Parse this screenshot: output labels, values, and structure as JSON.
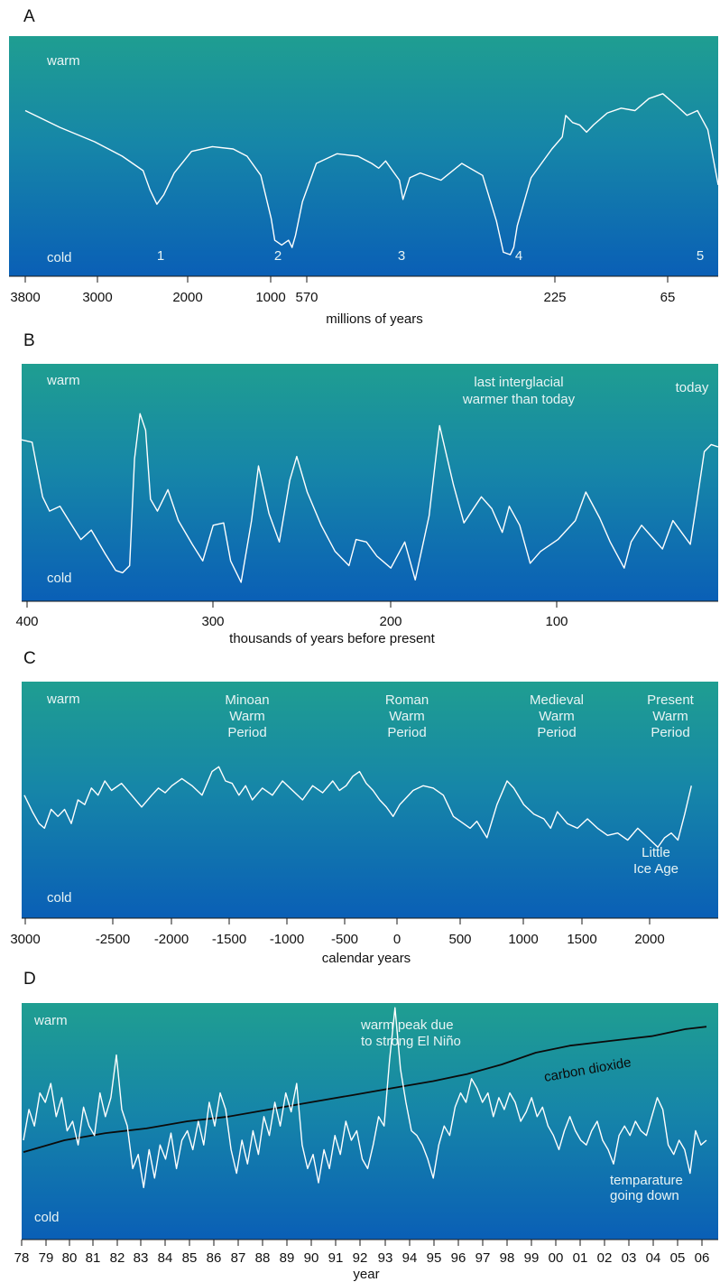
{
  "chart_data": [
    {
      "type": "line",
      "panel_label": "A",
      "xlabel": "millions of years",
      "ylabel_top": "warm",
      "ylabel_bottom": "cold",
      "x_ticks": [
        "3800",
        "3000",
        "2000",
        "1000",
        "570",
        "225",
        "65"
      ],
      "markers": [
        "1",
        "2",
        "3",
        "4",
        "5"
      ],
      "annotations": [],
      "series": [
        {
          "color": "#ffffff",
          "x": [
            0,
            0.05,
            0.1,
            0.14,
            0.17,
            0.18,
            0.19,
            0.2,
            0.215,
            0.24,
            0.27,
            0.3,
            0.32,
            0.34,
            0.355,
            0.36,
            0.37,
            0.38,
            0.385,
            0.39,
            0.4,
            0.42,
            0.45,
            0.48,
            0.5,
            0.51,
            0.52,
            0.53,
            0.54,
            0.545,
            0.555,
            0.57,
            0.6,
            0.63,
            0.66,
            0.68,
            0.69,
            0.7,
            0.705,
            0.71,
            0.73,
            0.76,
            0.775,
            0.78,
            0.79,
            0.8,
            0.81,
            0.82,
            0.84,
            0.86,
            0.88,
            0.9,
            0.92,
            0.94,
            0.955,
            0.97,
            0.985,
            1.0
          ],
          "y": [
            0.69,
            0.62,
            0.56,
            0.5,
            0.44,
            0.36,
            0.3,
            0.34,
            0.43,
            0.52,
            0.54,
            0.53,
            0.5,
            0.42,
            0.24,
            0.15,
            0.13,
            0.15,
            0.12,
            0.17,
            0.31,
            0.47,
            0.51,
            0.5,
            0.47,
            0.45,
            0.48,
            0.44,
            0.4,
            0.32,
            0.41,
            0.43,
            0.4,
            0.47,
            0.42,
            0.23,
            0.1,
            0.09,
            0.12,
            0.21,
            0.41,
            0.53,
            0.58,
            0.67,
            0.64,
            0.63,
            0.6,
            0.63,
            0.68,
            0.7,
            0.69,
            0.74,
            0.76,
            0.71,
            0.67,
            0.69,
            0.61,
            0.38
          ]
        }
      ]
    },
    {
      "type": "line",
      "panel_label": "B",
      "xlabel": "thousands of years before present",
      "ylabel_top": "warm",
      "ylabel_bottom": "cold",
      "x_ticks": [
        "400",
        "300",
        "200",
        "100"
      ],
      "markers": [],
      "annotations": [
        {
          "id": "interglacial",
          "lines": [
            "last interglacial",
            "warmer than today"
          ]
        },
        {
          "id": "today",
          "lines": [
            "today"
          ]
        }
      ],
      "series": [
        {
          "color": "#ffffff",
          "x": [
            0,
            0.015,
            0.03,
            0.04,
            0.055,
            0.07,
            0.085,
            0.1,
            0.12,
            0.135,
            0.145,
            0.155,
            0.162,
            0.17,
            0.178,
            0.185,
            0.195,
            0.21,
            0.225,
            0.245,
            0.26,
            0.275,
            0.29,
            0.3,
            0.315,
            0.33,
            0.34,
            0.355,
            0.37,
            0.385,
            0.395,
            0.41,
            0.43,
            0.45,
            0.47,
            0.48,
            0.495,
            0.51,
            0.53,
            0.55,
            0.565,
            0.585,
            0.6,
            0.62,
            0.635,
            0.66,
            0.675,
            0.69,
            0.7,
            0.715,
            0.73,
            0.745,
            0.77,
            0.795,
            0.81,
            0.83,
            0.845,
            0.865,
            0.875,
            0.89,
            0.905,
            0.92,
            0.935,
            0.95,
            0.96,
            0.97,
            0.98,
            0.99,
            1.0
          ],
          "y": [
            0.68,
            0.67,
            0.44,
            0.38,
            0.4,
            0.33,
            0.26,
            0.3,
            0.2,
            0.13,
            0.12,
            0.15,
            0.6,
            0.79,
            0.72,
            0.43,
            0.38,
            0.47,
            0.34,
            0.24,
            0.17,
            0.32,
            0.33,
            0.17,
            0.08,
            0.34,
            0.57,
            0.37,
            0.25,
            0.51,
            0.61,
            0.46,
            0.32,
            0.21,
            0.15,
            0.26,
            0.25,
            0.19,
            0.14,
            0.25,
            0.09,
            0.36,
            0.74,
            0.49,
            0.33,
            0.44,
            0.39,
            0.29,
            0.4,
            0.32,
            0.16,
            0.21,
            0.26,
            0.34,
            0.46,
            0.35,
            0.25,
            0.14,
            0.25,
            0.32,
            0.27,
            0.22,
            0.34,
            0.28,
            0.24,
            0.43,
            0.63,
            0.66,
            0.65
          ]
        }
      ]
    },
    {
      "type": "line",
      "panel_label": "C",
      "xlabel": "calendar years",
      "ylabel_top": "warm",
      "ylabel_bottom": "cold",
      "x_ticks": [
        "3000",
        "-2500",
        "-2000",
        "-1500",
        "-1000",
        "-500",
        "0",
        "500",
        "1000",
        "1500",
        "2000"
      ],
      "markers": [],
      "annotations": [
        {
          "id": "minoan",
          "lines": [
            "Minoan",
            "Warm",
            "Period"
          ]
        },
        {
          "id": "roman",
          "lines": [
            "Roman",
            "Warm",
            "Period"
          ]
        },
        {
          "id": "medieval",
          "lines": [
            "Medieval",
            "Warm",
            "Period"
          ]
        },
        {
          "id": "present",
          "lines": [
            "Present",
            "Warm",
            "Period"
          ]
        },
        {
          "id": "little-ice-age",
          "lines": [
            "Little",
            "Ice Age"
          ]
        }
      ],
      "series": [
        {
          "color": "#ffffff",
          "x": [
            0,
            0.012,
            0.022,
            0.03,
            0.04,
            0.05,
            0.06,
            0.07,
            0.08,
            0.09,
            0.1,
            0.11,
            0.12,
            0.13,
            0.145,
            0.16,
            0.175,
            0.19,
            0.2,
            0.21,
            0.22,
            0.235,
            0.25,
            0.265,
            0.28,
            0.29,
            0.3,
            0.31,
            0.32,
            0.33,
            0.34,
            0.355,
            0.37,
            0.385,
            0.4,
            0.415,
            0.43,
            0.445,
            0.46,
            0.47,
            0.48,
            0.49,
            0.5,
            0.51,
            0.52,
            0.53,
            0.54,
            0.55,
            0.56,
            0.57,
            0.58,
            0.595,
            0.61,
            0.625,
            0.64,
            0.655,
            0.665,
            0.675,
            0.69,
            0.705,
            0.72,
            0.73,
            0.745,
            0.76,
            0.775,
            0.785,
            0.795,
            0.81,
            0.825,
            0.84,
            0.855,
            0.87,
            0.885,
            0.9,
            0.915,
            0.93,
            0.945,
            0.955,
            0.965,
            0.975,
            0.985,
            0.995
          ],
          "y": [
            0.52,
            0.45,
            0.4,
            0.38,
            0.46,
            0.43,
            0.46,
            0.4,
            0.5,
            0.48,
            0.55,
            0.52,
            0.58,
            0.54,
            0.57,
            0.52,
            0.47,
            0.52,
            0.55,
            0.53,
            0.56,
            0.59,
            0.56,
            0.52,
            0.62,
            0.64,
            0.58,
            0.57,
            0.52,
            0.56,
            0.5,
            0.55,
            0.52,
            0.58,
            0.54,
            0.5,
            0.56,
            0.53,
            0.58,
            0.54,
            0.56,
            0.6,
            0.62,
            0.57,
            0.54,
            0.5,
            0.47,
            0.43,
            0.48,
            0.51,
            0.54,
            0.56,
            0.55,
            0.52,
            0.43,
            0.4,
            0.38,
            0.41,
            0.34,
            0.48,
            0.58,
            0.55,
            0.48,
            0.44,
            0.42,
            0.38,
            0.45,
            0.4,
            0.38,
            0.42,
            0.38,
            0.35,
            0.36,
            0.33,
            0.38,
            0.34,
            0.3,
            0.34,
            0.36,
            0.33,
            0.44,
            0.56
          ]
        }
      ]
    },
    {
      "type": "line",
      "panel_label": "D",
      "xlabel": "year",
      "ylabel_top": "warm",
      "ylabel_bottom": "cold",
      "x_ticks": [
        "78",
        "79",
        "80",
        "81",
        "82",
        "83",
        "84",
        "85",
        "86",
        "87",
        "88",
        "89",
        "90",
        "91",
        "92",
        "93",
        "94",
        "95",
        "96",
        "97",
        "98",
        "99",
        "00",
        "01",
        "02",
        "03",
        "04",
        "05",
        "06"
      ],
      "markers": [],
      "annotations": [
        {
          "id": "el-nino",
          "lines": [
            "warm peak due",
            "to strong El Niño"
          ]
        },
        {
          "id": "co2",
          "lines": [
            "carbon dioxide"
          ]
        },
        {
          "id": "temp-down",
          "lines": [
            "temparature",
            "going down"
          ]
        }
      ],
      "series": [
        {
          "name": "carbon dioxide",
          "color": "#0b0b0b",
          "x": [
            0,
            0.06,
            0.12,
            0.18,
            0.24,
            0.3,
            0.36,
            0.42,
            0.48,
            0.54,
            0.6,
            0.65,
            0.7,
            0.75,
            0.8,
            0.86,
            0.92,
            0.97,
            1.0
          ],
          "y": [
            0.37,
            0.42,
            0.45,
            0.47,
            0.5,
            0.52,
            0.55,
            0.58,
            0.61,
            0.64,
            0.67,
            0.7,
            0.74,
            0.79,
            0.82,
            0.84,
            0.86,
            0.89,
            0.9
          ]
        },
        {
          "name": "temperature",
          "color": "#ffffff",
          "x": [
            0,
            0.008,
            0.016,
            0.024,
            0.032,
            0.04,
            0.048,
            0.056,
            0.064,
            0.072,
            0.08,
            0.088,
            0.096,
            0.104,
            0.112,
            0.12,
            0.128,
            0.136,
            0.144,
            0.152,
            0.16,
            0.168,
            0.176,
            0.184,
            0.192,
            0.2,
            0.208,
            0.216,
            0.224,
            0.232,
            0.24,
            0.248,
            0.256,
            0.264,
            0.272,
            0.28,
            0.288,
            0.296,
            0.304,
            0.312,
            0.32,
            0.328,
            0.336,
            0.344,
            0.352,
            0.36,
            0.368,
            0.376,
            0.384,
            0.392,
            0.4,
            0.408,
            0.416,
            0.424,
            0.432,
            0.44,
            0.448,
            0.456,
            0.464,
            0.472,
            0.48,
            0.488,
            0.496,
            0.504,
            0.512,
            0.52,
            0.528,
            0.536,
            0.544,
            0.552,
            0.56,
            0.568,
            0.576,
            0.584,
            0.592,
            0.6,
            0.608,
            0.616,
            0.624,
            0.632,
            0.64,
            0.648,
            0.656,
            0.664,
            0.672,
            0.68,
            0.688,
            0.696,
            0.704,
            0.712,
            0.72,
            0.728,
            0.736,
            0.744,
            0.752,
            0.76,
            0.768,
            0.776,
            0.784,
            0.792,
            0.8,
            0.808,
            0.816,
            0.824,
            0.832,
            0.84,
            0.848,
            0.856,
            0.864,
            0.872,
            0.88,
            0.888,
            0.896,
            0.904,
            0.912,
            0.92,
            0.928,
            0.936,
            0.944,
            0.952,
            0.96,
            0.968,
            0.976,
            0.984,
            0.992,
            1.0
          ],
          "y": [
            0.42,
            0.55,
            0.48,
            0.62,
            0.58,
            0.66,
            0.52,
            0.6,
            0.46,
            0.5,
            0.4,
            0.56,
            0.48,
            0.44,
            0.62,
            0.52,
            0.6,
            0.78,
            0.55,
            0.48,
            0.3,
            0.36,
            0.22,
            0.38,
            0.26,
            0.4,
            0.34,
            0.45,
            0.3,
            0.42,
            0.46,
            0.38,
            0.5,
            0.4,
            0.58,
            0.48,
            0.62,
            0.55,
            0.38,
            0.28,
            0.42,
            0.32,
            0.46,
            0.36,
            0.52,
            0.44,
            0.58,
            0.48,
            0.62,
            0.54,
            0.66,
            0.4,
            0.3,
            0.36,
            0.24,
            0.38,
            0.3,
            0.44,
            0.36,
            0.5,
            0.42,
            0.46,
            0.34,
            0.3,
            0.4,
            0.52,
            0.48,
            0.76,
            0.98,
            0.72,
            0.58,
            0.46,
            0.44,
            0.4,
            0.34,
            0.26,
            0.4,
            0.48,
            0.44,
            0.56,
            0.62,
            0.58,
            0.68,
            0.64,
            0.58,
            0.62,
            0.52,
            0.6,
            0.55,
            0.62,
            0.58,
            0.5,
            0.54,
            0.6,
            0.52,
            0.56,
            0.48,
            0.44,
            0.38,
            0.46,
            0.52,
            0.46,
            0.42,
            0.4,
            0.46,
            0.5,
            0.42,
            0.38,
            0.32,
            0.44,
            0.48,
            0.44,
            0.5,
            0.46,
            0.44,
            0.52,
            0.6,
            0.55,
            0.4,
            0.36,
            0.42,
            0.38,
            0.28,
            0.46,
            0.4,
            0.42
          ]
        }
      ]
    }
  ],
  "colors": {
    "panel_top": "#1b9c93",
    "panel_bottom": "#0a5fb4",
    "text_on_panel": "#e8f4f4",
    "axis_text": "#111111"
  }
}
